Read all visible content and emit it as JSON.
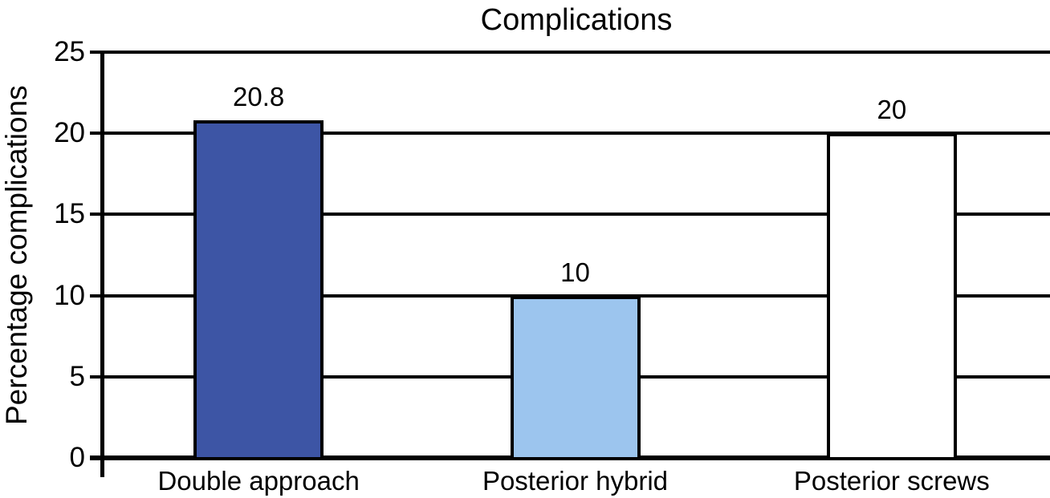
{
  "title": "Complications",
  "y_axis_label": "Percentage complications",
  "chart_data": {
    "type": "bar",
    "title": "Complications",
    "ylabel": "Percentage complications",
    "xlabel": "",
    "categories": [
      "Double approach",
      "Posterior hybrid",
      "Posterior screws"
    ],
    "values": [
      20.8,
      10,
      20
    ],
    "value_labels": [
      "20.8",
      "10",
      "20"
    ],
    "bar_colors": [
      "#3d55a5",
      "#9cc5ee",
      "#ffffff"
    ],
    "bar_border_color": "#000000",
    "ylim": [
      0,
      25
    ],
    "yticks": [
      0,
      5,
      10,
      15,
      20,
      25
    ],
    "grid": "horizontal",
    "legend": "none",
    "background": "#ffffff"
  }
}
